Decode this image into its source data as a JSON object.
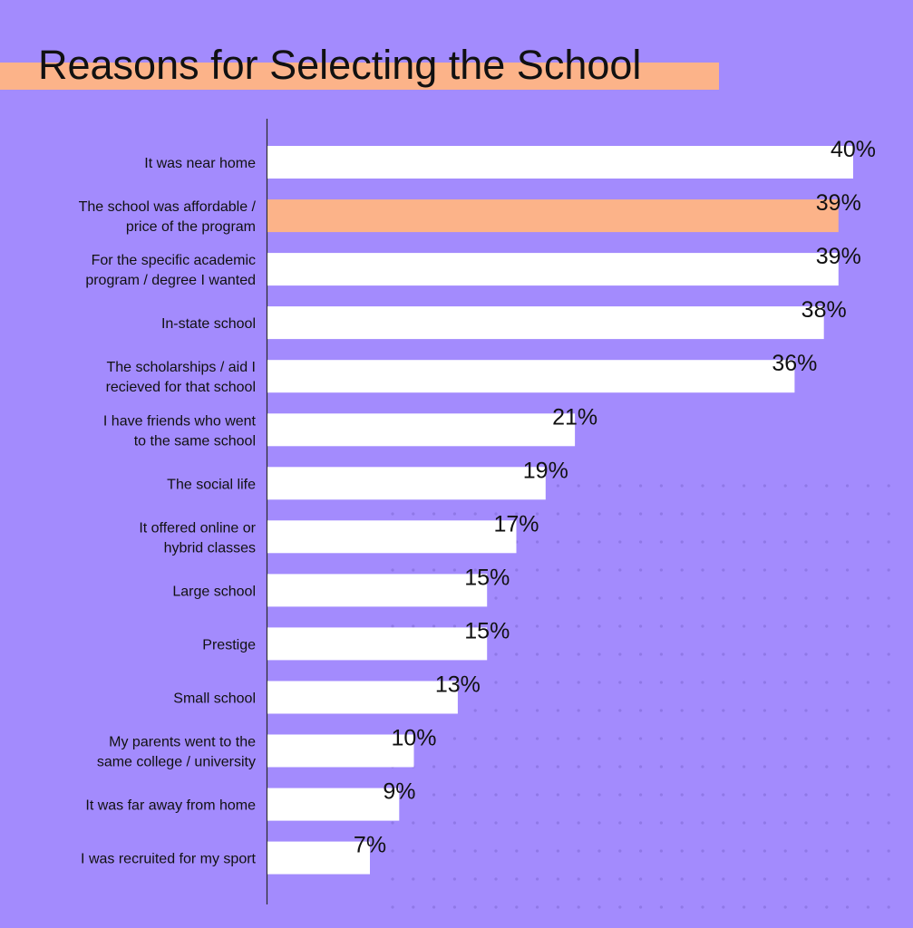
{
  "colors": {
    "background": "#a38bfd",
    "bar_default": "#ffffff",
    "bar_highlight": "#fcb389",
    "title_band": "#fcb389",
    "text": "#111111",
    "dots": "#8f78e6"
  },
  "chart_data": {
    "type": "bar",
    "orientation": "horizontal",
    "title": "Reasons for Selecting the School",
    "xlabel": "",
    "ylabel": "",
    "xlim": [
      0,
      40
    ],
    "grid": false,
    "highlight_index": 1,
    "categories": [
      [
        "It was near home"
      ],
      [
        "The school was affordable /",
        "price of the program"
      ],
      [
        "For the specific academic",
        "program / degree I wanted"
      ],
      [
        "In-state school"
      ],
      [
        "The scholarships / aid I",
        "recieved for that school"
      ],
      [
        "I have friends who went",
        "to the same school"
      ],
      [
        "The social life"
      ],
      [
        "It offered online or",
        "hybrid classes"
      ],
      [
        "Large school"
      ],
      [
        "Prestige"
      ],
      [
        "Small school"
      ],
      [
        "My parents went to the",
        "same college / university"
      ],
      [
        "It was far away from home"
      ],
      [
        "I was recruited for my sport"
      ]
    ],
    "values": [
      40,
      39,
      39,
      38,
      36,
      21,
      19,
      17,
      15,
      15,
      13,
      10,
      9,
      7
    ],
    "value_labels": [
      "40%",
      "39%",
      "39%",
      "38%",
      "36%",
      "21%",
      "19%",
      "17%",
      "15%",
      "15%",
      "13%",
      "10%",
      "9%",
      "7%"
    ]
  }
}
